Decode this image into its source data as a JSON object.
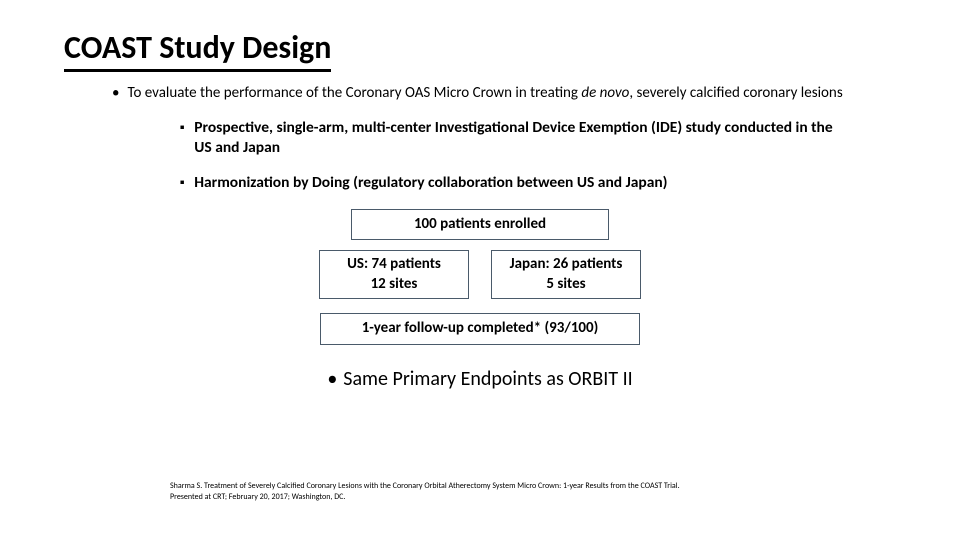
{
  "title": "COAST Study Design",
  "main_bullet_pre": "To evaluate the performance of the Coronary OAS Micro Crown in treating ",
  "main_bullet_italic": "de novo",
  "main_bullet_post": ", severely calcified coronary lesions",
  "sub1": "Prospective, single-arm, multi-center Investigational Device Exemption (IDE) study conducted in the US and Japan",
  "sub2": "Harmonization by Doing (regulatory collaboration between US and Japan)",
  "diagram": {
    "enrolled": "100 patients enrolled",
    "us_line1": "US: 74 patients",
    "us_line2": "12 sites",
    "jp_line1": "Japan: 26 patients",
    "jp_line2": "5 sites",
    "followup": "1-year follow-up completed* (93/100)"
  },
  "endpoint": "Same Primary Endpoints as ORBIT II",
  "citation": "Sharma S. Treatment of Severely Calcified Coronary Lesions with the Coronary Orbital Atherectomy System Micro Crown: 1-year Results from the COAST Trial. Presented at CRT; February 20, 2017; Washington, DC.",
  "style": {
    "title_fontsize": 32,
    "body_fontsize": 15,
    "box_border_color": "#4a5a6a",
    "bg_color": "#ffffff",
    "text_color": "#000000"
  }
}
